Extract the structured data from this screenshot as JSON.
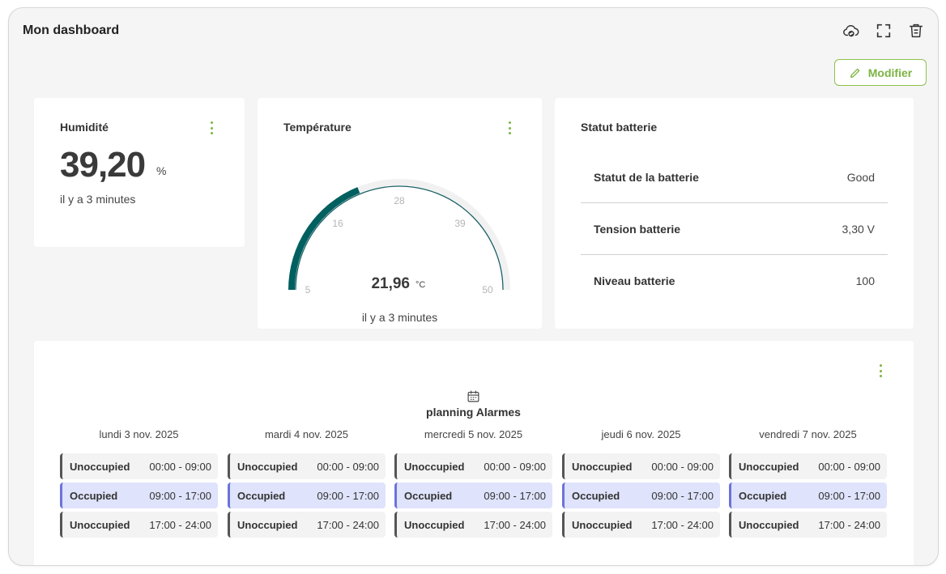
{
  "dashboard": {
    "title": "Mon dashboard",
    "edit_label": "Modifier"
  },
  "header_icons": [
    "cloud-sync-icon",
    "fullscreen-icon",
    "trash-icon"
  ],
  "colors": {
    "accent": "#7cb342",
    "gauge": "#005f5f",
    "occupied": "#dfe3fb",
    "occupied_border": "#6b73d8"
  },
  "humidity": {
    "title": "Humidité",
    "value": "39,20",
    "unit": "%",
    "updated": "il y a 3 minutes"
  },
  "temperature": {
    "title": "Température",
    "value": "21,96",
    "unit": "°C",
    "updated": "il y a 3 minutes",
    "min": 5,
    "max": 50,
    "current": 21.96,
    "ticks": [
      "5",
      "16",
      "28",
      "39",
      "50"
    ]
  },
  "battery": {
    "title": "Statut batterie",
    "rows": [
      {
        "label": "Statut de la batterie",
        "value": "Good"
      },
      {
        "label": "Tension batterie",
        "value": "3,30 V"
      },
      {
        "label": "Niveau batterie",
        "value": "100"
      }
    ]
  },
  "planning": {
    "title": "planning Alarmes",
    "days": [
      {
        "date": "lundi 3 nov. 2025",
        "slots": [
          {
            "status": "Unoccupied",
            "time": "00:00 - 09:00"
          },
          {
            "status": "Occupied",
            "time": "09:00 - 17:00"
          },
          {
            "status": "Unoccupied",
            "time": "17:00 - 24:00"
          }
        ]
      },
      {
        "date": "mardi 4 nov. 2025",
        "slots": [
          {
            "status": "Unoccupied",
            "time": "00:00 - 09:00"
          },
          {
            "status": "Occupied",
            "time": "09:00 - 17:00"
          },
          {
            "status": "Unoccupied",
            "time": "17:00 - 24:00"
          }
        ]
      },
      {
        "date": "mercredi 5 nov. 2025",
        "slots": [
          {
            "status": "Unoccupied",
            "time": "00:00 - 09:00"
          },
          {
            "status": "Occupied",
            "time": "09:00 - 17:00"
          },
          {
            "status": "Unoccupied",
            "time": "17:00 - 24:00"
          }
        ]
      },
      {
        "date": "jeudi 6 nov. 2025",
        "slots": [
          {
            "status": "Unoccupied",
            "time": "00:00 - 09:00"
          },
          {
            "status": "Occupied",
            "time": "09:00 - 17:00"
          },
          {
            "status": "Unoccupied",
            "time": "17:00 - 24:00"
          }
        ]
      },
      {
        "date": "vendredi 7 nov. 2025",
        "slots": [
          {
            "status": "Unoccupied",
            "time": "00:00 - 09:00"
          },
          {
            "status": "Occupied",
            "time": "09:00 - 17:00"
          },
          {
            "status": "Unoccupied",
            "time": "17:00 - 24:00"
          }
        ]
      }
    ]
  }
}
